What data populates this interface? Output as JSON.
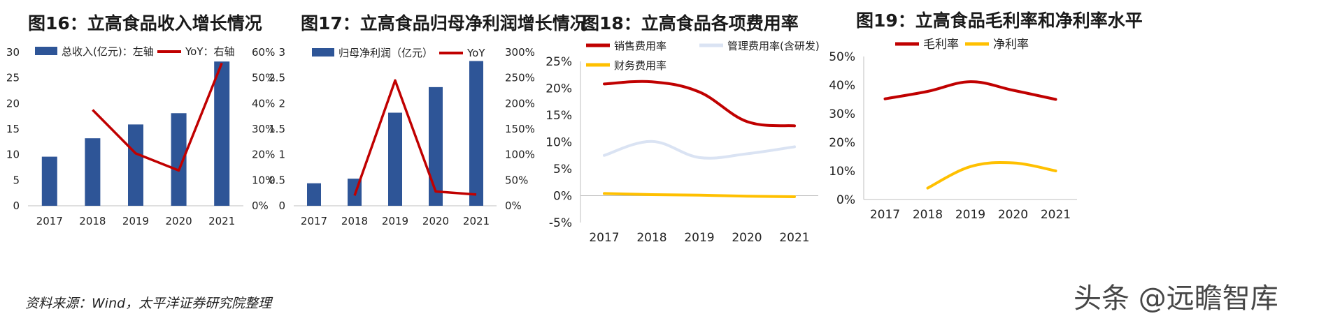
{
  "source_note": "资料来源：Wind，太平洋证券研究院整理",
  "watermark": "头条 @远瞻智库",
  "chart_data": [
    {
      "id": "fig16",
      "type": "bar",
      "title": "图16：立高食品收入增长情况",
      "categories": [
        "2017",
        "2018",
        "2019",
        "2020",
        "2021"
      ],
      "series": [
        {
          "name": "总收入(亿元)：左轴",
          "type": "bar",
          "axis": "left",
          "color": "#2e5597",
          "values": [
            9.6,
            13.2,
            15.9,
            18.1,
            28.2
          ]
        },
        {
          "name": "YoY：右轴",
          "type": "line",
          "axis": "right",
          "color": "#c00000",
          "values": [
            null,
            37.5,
            20.5,
            13.8,
            55.8
          ]
        }
      ],
      "y_left": {
        "min": 0,
        "max": 30,
        "ticks": [
          "0",
          "5",
          "10",
          "15",
          "20",
          "25",
          "30"
        ]
      },
      "y_right": {
        "min": 0,
        "max": 60,
        "ticks": [
          "0%",
          "10%",
          "20%",
          "30%",
          "40%",
          "50%",
          "60%"
        ]
      },
      "legend_position": "top"
    },
    {
      "id": "fig17",
      "type": "bar",
      "title": "图17：立高食品归母净利润增长情况",
      "categories": [
        "2017",
        "2018",
        "2019",
        "2020",
        "2021"
      ],
      "series": [
        {
          "name": "归母净利润（亿元）",
          "type": "bar",
          "axis": "left",
          "color": "#2e5597",
          "values": [
            0.44,
            0.53,
            1.82,
            2.32,
            2.83
          ]
        },
        {
          "name": "YoY",
          "type": "line",
          "axis": "right",
          "color": "#c00000",
          "values": [
            null,
            20,
            245,
            28,
            22
          ]
        }
      ],
      "y_left": {
        "min": 0,
        "max": 3,
        "ticks": [
          "0",
          "0.5",
          "1",
          "1.5",
          "2",
          "2.5",
          "3"
        ]
      },
      "y_right": {
        "min": 0,
        "max": 300,
        "ticks": [
          "0%",
          "50%",
          "100%",
          "150%",
          "200%",
          "250%",
          "300%"
        ]
      },
      "legend_position": "top"
    },
    {
      "id": "fig18",
      "type": "line",
      "title": "图18：立高食品各项费用率",
      "categories": [
        "2017",
        "2018",
        "2019",
        "2020",
        "2021"
      ],
      "series": [
        {
          "name": "销售费用率",
          "color": "#c00000",
          "values": [
            20.8,
            21.2,
            19.3,
            13.8,
            13.0
          ]
        },
        {
          "name": "管理费用率(含研发)",
          "color": "#dae3f3",
          "values": [
            7.5,
            10.1,
            7.1,
            7.8,
            9.1
          ]
        },
        {
          "name": "财务费用率",
          "color": "#ffc000",
          "values": [
            0.4,
            0.2,
            0.1,
            -0.1,
            -0.2
          ]
        }
      ],
      "y": {
        "min": -5,
        "max": 25,
        "ticks": [
          "-5%",
          "0%",
          "5%",
          "10%",
          "15%",
          "20%",
          "25%"
        ]
      },
      "legend_position": "top"
    },
    {
      "id": "fig19",
      "type": "line",
      "title": "图19：立高食品毛利率和净利率水平",
      "categories": [
        "2017",
        "2018",
        "2019",
        "2020",
        "2021"
      ],
      "series": [
        {
          "name": "毛利率",
          "color": "#c00000",
          "values": [
            35.2,
            37.8,
            41.2,
            38.2,
            35.0
          ]
        },
        {
          "name": "净利率",
          "color": "#ffc000",
          "values": [
            null,
            4.0,
            11.5,
            12.8,
            10.0
          ]
        }
      ],
      "y": {
        "min": 0,
        "max": 50,
        "ticks": [
          "0%",
          "10%",
          "20%",
          "30%",
          "40%",
          "50%"
        ]
      },
      "legend_position": "top"
    }
  ]
}
